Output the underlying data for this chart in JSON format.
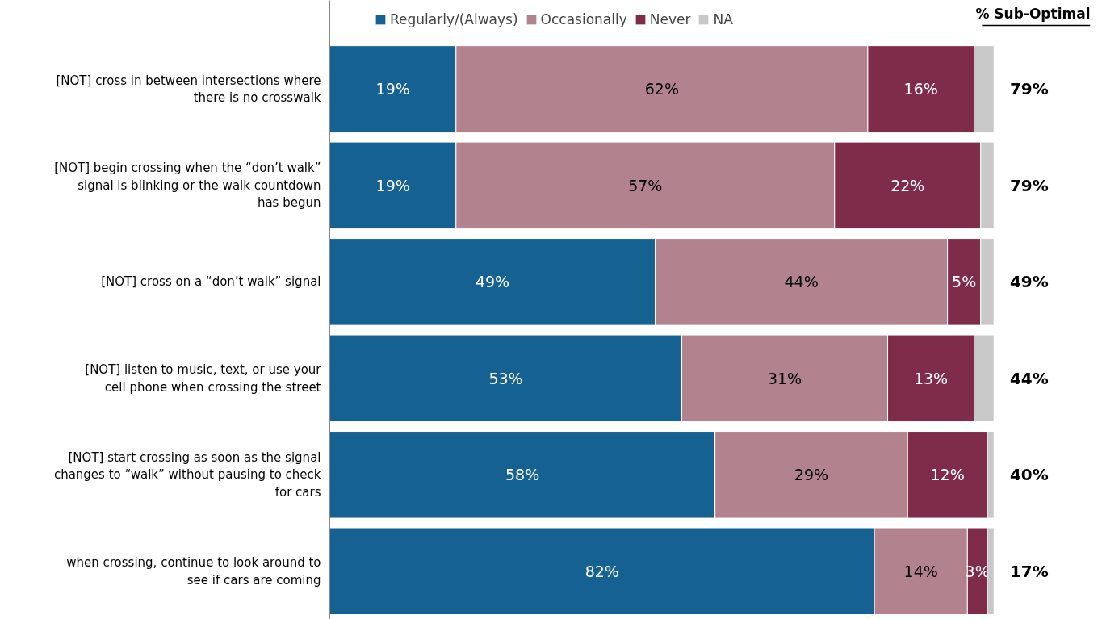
{
  "chart_data": {
    "type": "bar",
    "orientation": "horizontal",
    "stacked": true,
    "categories": [
      "[NOT] cross in between intersections where there is no crosswalk",
      "[NOT] begin crossing when the “don’t walk” signal is blinking or the walk countdown has begun",
      "[NOT] cross on a “don’t walk” signal",
      "[NOT] listen to music, text, or use your cell phone when crossing the street",
      "[NOT] start crossing as soon as the signal changes to “walk” without pausing to check for cars",
      "when crossing, continue to look around to see if cars are coming"
    ],
    "series": [
      {
        "name": "Regularly/(Always)",
        "color": "#156191",
        "values": [
          19,
          19,
          49,
          53,
          58,
          82
        ],
        "value_labels": [
          "19%",
          "19%",
          "49%",
          "53%",
          "58%",
          "82%"
        ]
      },
      {
        "name": "Occasionally",
        "color": "#b2838f",
        "values": [
          62,
          57,
          44,
          31,
          29,
          14
        ],
        "value_labels": [
          "62%",
          "57%",
          "44%",
          "31%",
          "29%",
          "14%"
        ]
      },
      {
        "name": "Never",
        "color": "#7f2c4b",
        "values": [
          16,
          22,
          5,
          13,
          12,
          3
        ],
        "value_labels": [
          "16%",
          "22%",
          "5%",
          "13%",
          "12%",
          "3%"
        ]
      },
      {
        "name": "NA",
        "color": "#c8c8c8",
        "values": [
          3,
          2,
          2,
          3,
          1,
          1
        ],
        "value_labels": [
          null,
          null,
          null,
          null,
          null,
          null
        ]
      }
    ],
    "annotations": [
      "% Sub-Optimal",
      "79%",
      "79%",
      "49%",
      "44%",
      "40%",
      "17%"
    ],
    "legend": "top",
    "grid": false
  }
}
